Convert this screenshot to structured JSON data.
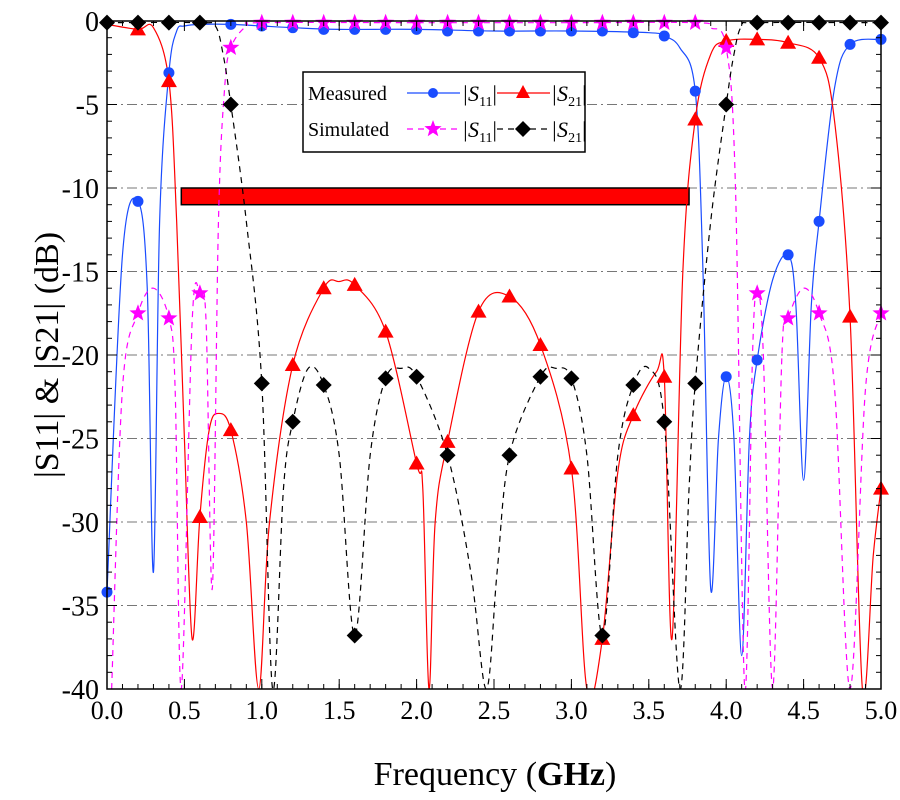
{
  "chart_data": {
    "type": "line",
    "xlabel": "Frequency",
    "xlabel_unit": "GHz",
    "ylabel": "|S11| & |S21| (dB)",
    "xlim": [
      0,
      5
    ],
    "ylim": [
      -40,
      0
    ],
    "xticks": [
      "0.0",
      "0.5",
      "1.0",
      "1.5",
      "2.0",
      "2.5",
      "3.0",
      "3.5",
      "4.0",
      "4.5",
      "5.0"
    ],
    "yticks": [
      "0",
      "-5",
      "-10",
      "-15",
      "-20",
      "-25",
      "-30",
      "-35",
      "-40"
    ],
    "grid": "horizontal dash-dot",
    "legend": {
      "placement": "top-center",
      "row1": "Measured",
      "row2": "Simulated",
      "s11": "|S",
      "s11_sub": "11",
      "s21_sub": "21"
    },
    "annotation_band": {
      "x": [
        0.48,
        3.76
      ],
      "y": [
        -11.0,
        -10.0
      ],
      "color": "#ff0000"
    },
    "series": [
      {
        "name": "Measured |S11|",
        "color": "#1a4cff",
        "dash": "solid",
        "marker": "circle",
        "curve": [
          [
            0,
            -34.2
          ],
          [
            0.1,
            -14
          ],
          [
            0.2,
            -10.8
          ],
          [
            0.26,
            -16
          ],
          [
            0.3,
            -33
          ],
          [
            0.34,
            -12
          ],
          [
            0.4,
            -3.1
          ],
          [
            0.45,
            -0.6
          ],
          [
            0.5,
            -0.3
          ],
          [
            0.6,
            -0.2
          ],
          [
            0.8,
            -0.2
          ],
          [
            1.0,
            -0.3
          ],
          [
            1.2,
            -0.4
          ],
          [
            1.5,
            -0.5
          ],
          [
            2.0,
            -0.5
          ],
          [
            2.5,
            -0.6
          ],
          [
            3.0,
            -0.6
          ],
          [
            3.5,
            -0.7
          ],
          [
            3.6,
            -0.9
          ],
          [
            3.7,
            -1.6
          ],
          [
            3.8,
            -4.2
          ],
          [
            3.85,
            -15
          ],
          [
            3.9,
            -34
          ],
          [
            3.95,
            -25
          ],
          [
            4.0,
            -21.3
          ],
          [
            4.05,
            -25
          ],
          [
            4.1,
            -38
          ],
          [
            4.15,
            -25
          ],
          [
            4.2,
            -20.3
          ],
          [
            4.3,
            -15.5
          ],
          [
            4.4,
            -14
          ],
          [
            4.45,
            -17
          ],
          [
            4.5,
            -27.5
          ],
          [
            4.55,
            -17
          ],
          [
            4.6,
            -12
          ],
          [
            4.7,
            -4
          ],
          [
            4.8,
            -1.4
          ],
          [
            5.0,
            -1.1
          ]
        ],
        "markers": [
          [
            0,
            -34.2
          ],
          [
            0.2,
            -10.8
          ],
          [
            0.4,
            -3.1
          ],
          [
            0.8,
            -0.2
          ],
          [
            1.0,
            -0.3
          ],
          [
            1.2,
            -0.4
          ],
          [
            1.4,
            -0.5
          ],
          [
            1.6,
            -0.5
          ],
          [
            1.8,
            -0.5
          ],
          [
            2.0,
            -0.5
          ],
          [
            2.2,
            -0.6
          ],
          [
            2.4,
            -0.6
          ],
          [
            2.6,
            -0.6
          ],
          [
            2.8,
            -0.6
          ],
          [
            3.0,
            -0.6
          ],
          [
            3.2,
            -0.6
          ],
          [
            3.4,
            -0.7
          ],
          [
            3.6,
            -0.9
          ],
          [
            3.8,
            -4.2
          ],
          [
            4.0,
            -21.3
          ],
          [
            4.2,
            -20.3
          ],
          [
            4.4,
            -14
          ],
          [
            4.6,
            -12
          ],
          [
            4.8,
            -1.4
          ],
          [
            5.0,
            -1.1
          ]
        ]
      },
      {
        "name": "Measured |S21|",
        "color": "#ff0000",
        "dash": "solid",
        "marker": "triangle",
        "curve": [
          [
            0,
            -0.2
          ],
          [
            0.2,
            -0.5
          ],
          [
            0.3,
            -0.4
          ],
          [
            0.4,
            -3.6
          ],
          [
            0.45,
            -12
          ],
          [
            0.5,
            -25
          ],
          [
            0.55,
            -37
          ],
          [
            0.6,
            -29.7
          ],
          [
            0.66,
            -24.5
          ],
          [
            0.72,
            -23.5
          ],
          [
            0.8,
            -24.5
          ],
          [
            0.9,
            -30
          ],
          [
            0.98,
            -40
          ],
          [
            1.05,
            -30
          ],
          [
            1.2,
            -20.6
          ],
          [
            1.4,
            -16
          ],
          [
            1.5,
            -15.6
          ],
          [
            1.6,
            -15.8
          ],
          [
            1.8,
            -18.6
          ],
          [
            2.0,
            -26.5
          ],
          [
            2.04,
            -28
          ],
          [
            2.08,
            -40
          ],
          [
            2.12,
            -30
          ],
          [
            2.2,
            -25.2
          ],
          [
            2.4,
            -17.4
          ],
          [
            2.6,
            -16.5
          ],
          [
            2.8,
            -19.4
          ],
          [
            3.0,
            -26.8
          ],
          [
            3.1,
            -40
          ],
          [
            3.2,
            -37
          ],
          [
            3.3,
            -27
          ],
          [
            3.4,
            -23.6
          ],
          [
            3.55,
            -21
          ],
          [
            3.6,
            -21.3
          ],
          [
            3.65,
            -37
          ],
          [
            3.72,
            -15
          ],
          [
            3.8,
            -5.9
          ],
          [
            3.9,
            -2
          ],
          [
            4.0,
            -1.2
          ],
          [
            4.2,
            -1.1
          ],
          [
            4.4,
            -1.3
          ],
          [
            4.6,
            -2.2
          ],
          [
            4.7,
            -6
          ],
          [
            4.8,
            -17.7
          ],
          [
            4.88,
            -40
          ],
          [
            4.95,
            -32
          ],
          [
            5.0,
            -28
          ]
        ],
        "markers": [
          [
            0.2,
            -0.5
          ],
          [
            0.4,
            -3.6
          ],
          [
            0.6,
            -29.7
          ],
          [
            0.8,
            -24.5
          ],
          [
            1.2,
            -20.6
          ],
          [
            1.4,
            -16
          ],
          [
            1.6,
            -15.8
          ],
          [
            1.8,
            -18.6
          ],
          [
            2.0,
            -26.5
          ],
          [
            2.2,
            -25.2
          ],
          [
            2.4,
            -17.4
          ],
          [
            2.6,
            -16.5
          ],
          [
            2.8,
            -19.4
          ],
          [
            3.0,
            -26.8
          ],
          [
            3.2,
            -37
          ],
          [
            3.4,
            -23.6
          ],
          [
            3.6,
            -21.3
          ],
          [
            3.8,
            -5.9
          ],
          [
            4.0,
            -1.2
          ],
          [
            4.2,
            -1.1
          ],
          [
            4.4,
            -1.3
          ],
          [
            4.6,
            -2.2
          ],
          [
            4.8,
            -17.7
          ],
          [
            5.0,
            -28
          ]
        ]
      },
      {
        "name": "Simulated |S11|",
        "color": "#ff00ff",
        "dash": "dashed",
        "marker": "star",
        "curve": [
          [
            0.03,
            -40
          ],
          [
            0.1,
            -22
          ],
          [
            0.2,
            -17.5
          ],
          [
            0.3,
            -16
          ],
          [
            0.4,
            -17.8
          ],
          [
            0.44,
            -22
          ],
          [
            0.48,
            -40
          ],
          [
            0.55,
            -18
          ],
          [
            0.6,
            -16.3
          ],
          [
            0.64,
            -18
          ],
          [
            0.68,
            -34
          ],
          [
            0.72,
            -12
          ],
          [
            0.76,
            -4
          ],
          [
            0.8,
            -1.6
          ],
          [
            0.9,
            -0.3
          ],
          [
            1.0,
            -0.1
          ],
          [
            2.0,
            -0.1
          ],
          [
            3.0,
            -0.1
          ],
          [
            3.8,
            -0.1
          ],
          [
            3.9,
            -0.4
          ],
          [
            4.0,
            -1.6
          ],
          [
            4.06,
            -10
          ],
          [
            4.12,
            -40
          ],
          [
            4.17,
            -20
          ],
          [
            4.2,
            -16.3
          ],
          [
            4.24,
            -20
          ],
          [
            4.3,
            -40
          ],
          [
            4.36,
            -20
          ],
          [
            4.4,
            -17.8
          ],
          [
            4.5,
            -16
          ],
          [
            4.6,
            -17.5
          ],
          [
            4.7,
            -22
          ],
          [
            4.8,
            -40
          ],
          [
            4.9,
            -22
          ],
          [
            5.0,
            -17.5
          ]
        ],
        "markers": [
          [
            0.2,
            -17.5
          ],
          [
            0.4,
            -17.8
          ],
          [
            0.6,
            -16.3
          ],
          [
            0.8,
            -1.6
          ],
          [
            1.0,
            -0.1
          ],
          [
            1.2,
            -0.1
          ],
          [
            1.4,
            -0.1
          ],
          [
            1.6,
            -0.1
          ],
          [
            1.8,
            -0.1
          ],
          [
            2.0,
            -0.1
          ],
          [
            2.2,
            -0.1
          ],
          [
            2.4,
            -0.1
          ],
          [
            2.6,
            -0.1
          ],
          [
            2.8,
            -0.1
          ],
          [
            3.0,
            -0.1
          ],
          [
            3.2,
            -0.1
          ],
          [
            3.4,
            -0.1
          ],
          [
            3.6,
            -0.1
          ],
          [
            3.8,
            -0.1
          ],
          [
            4.0,
            -1.6
          ],
          [
            4.2,
            -16.3
          ],
          [
            4.4,
            -17.8
          ],
          [
            4.6,
            -17.5
          ],
          [
            5.0,
            -17.5
          ]
        ]
      },
      {
        "name": "Simulated |S21|",
        "color": "#000000",
        "dash": "dashed",
        "marker": "diamond",
        "curve": [
          [
            0,
            -0.1
          ],
          [
            0.6,
            -0.1
          ],
          [
            0.7,
            -0.3
          ],
          [
            0.75,
            -2
          ],
          [
            0.8,
            -5
          ],
          [
            0.9,
            -12
          ],
          [
            1.0,
            -21.7
          ],
          [
            1.07,
            -40
          ],
          [
            1.14,
            -28
          ],
          [
            1.2,
            -24
          ],
          [
            1.3,
            -20.8
          ],
          [
            1.4,
            -21.8
          ],
          [
            1.5,
            -26
          ],
          [
            1.6,
            -36.8
          ],
          [
            1.7,
            -26
          ],
          [
            1.8,
            -21.4
          ],
          [
            1.9,
            -20.8
          ],
          [
            2.0,
            -21.3
          ],
          [
            2.2,
            -26
          ],
          [
            2.35,
            -33
          ],
          [
            2.45,
            -40
          ],
          [
            2.52,
            -33
          ],
          [
            2.6,
            -26
          ],
          [
            2.8,
            -21.3
          ],
          [
            2.9,
            -20.8
          ],
          [
            3.0,
            -21.4
          ],
          [
            3.1,
            -26
          ],
          [
            3.2,
            -36.8
          ],
          [
            3.3,
            -26
          ],
          [
            3.4,
            -21.8
          ],
          [
            3.5,
            -20.8
          ],
          [
            3.6,
            -24
          ],
          [
            3.7,
            -40
          ],
          [
            3.76,
            -28
          ],
          [
            3.8,
            -21.7
          ],
          [
            3.9,
            -12
          ],
          [
            4.0,
            -5
          ],
          [
            4.05,
            -2
          ],
          [
            4.1,
            -0.3
          ],
          [
            4.2,
            -0.1
          ],
          [
            5.0,
            -0.1
          ]
        ],
        "markers": [
          [
            0,
            -0.1
          ],
          [
            0.2,
            -0.1
          ],
          [
            0.4,
            -0.1
          ],
          [
            0.6,
            -0.1
          ],
          [
            0.8,
            -5
          ],
          [
            1.0,
            -21.7
          ],
          [
            1.2,
            -24
          ],
          [
            1.4,
            -21.8
          ],
          [
            1.6,
            -36.8
          ],
          [
            1.8,
            -21.4
          ],
          [
            2.0,
            -21.3
          ],
          [
            2.2,
            -26
          ],
          [
            2.6,
            -26
          ],
          [
            2.8,
            -21.3
          ],
          [
            3.0,
            -21.4
          ],
          [
            3.2,
            -36.8
          ],
          [
            3.4,
            -21.8
          ],
          [
            3.6,
            -24
          ],
          [
            3.8,
            -21.7
          ],
          [
            4.0,
            -5
          ],
          [
            4.2,
            -0.1
          ],
          [
            4.4,
            -0.1
          ],
          [
            4.6,
            -0.1
          ],
          [
            4.8,
            -0.1
          ],
          [
            5.0,
            -0.1
          ]
        ]
      }
    ]
  }
}
